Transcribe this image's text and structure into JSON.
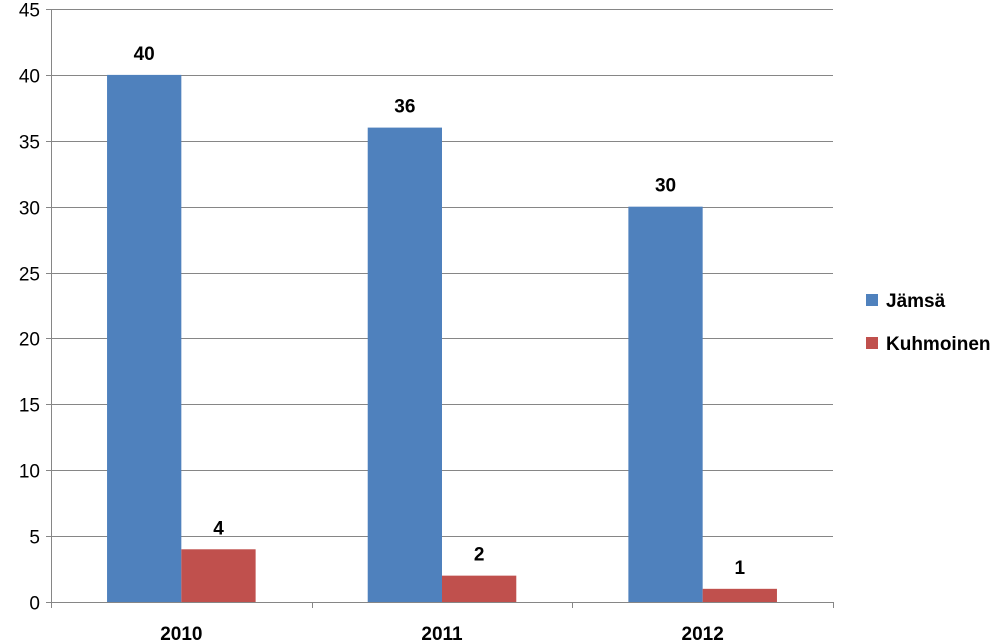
{
  "chart_data": {
    "type": "bar",
    "categories": [
      "2010",
      "2011",
      "2012"
    ],
    "series": [
      {
        "name": "Jämsä",
        "values": [
          40,
          36,
          30
        ],
        "color": "#4F81BD"
      },
      {
        "name": "Kuhmoinen",
        "values": [
          4,
          2,
          1
        ],
        "color": "#C0504D"
      }
    ],
    "title": "",
    "xlabel": "",
    "ylabel": "",
    "ylim": [
      0,
      45
    ],
    "yticks": [
      0,
      5,
      10,
      15,
      20,
      25,
      30,
      35,
      40,
      45
    ],
    "grid": true,
    "legend": "right",
    "data_labels": true,
    "colors": {
      "gridline": "#868686",
      "axis": "#868686"
    }
  }
}
